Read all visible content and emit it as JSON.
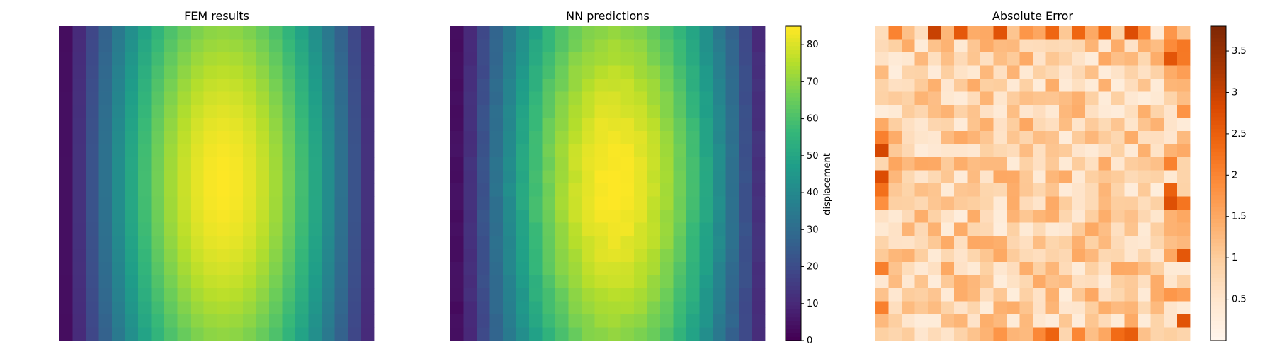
{
  "chart_data": [
    {
      "type": "heatmap",
      "title": "FEM results",
      "colormap": "viridis",
      "grid_size": [
        24,
        24
      ],
      "field": "displacement",
      "value_range": [
        0,
        85
      ],
      "peak_column": 12,
      "peak_row": 12,
      "axes_visible": false
    },
    {
      "type": "heatmap",
      "title": "NN predictions",
      "colormap": "viridis",
      "grid_size": [
        24,
        24
      ],
      "field": "displacement",
      "value_range": [
        0,
        85
      ],
      "peak_column": 12,
      "peak_row": 12,
      "axes_visible": false,
      "colorbar": {
        "label": "displacement",
        "min": 0,
        "max": 85,
        "ticks": [
          0,
          10,
          20,
          30,
          40,
          50,
          60,
          70,
          80
        ]
      }
    },
    {
      "type": "heatmap",
      "title": "Absolute Error",
      "colormap": "oranges",
      "grid_size": [
        24,
        24
      ],
      "value_range": [
        0,
        3.8
      ],
      "axes_visible": false,
      "colorbar": {
        "label": "",
        "min": 0,
        "max": 3.8,
        "ticks": [
          0.5,
          1.0,
          1.5,
          2.0,
          2.5,
          3.0,
          3.5
        ]
      }
    }
  ]
}
